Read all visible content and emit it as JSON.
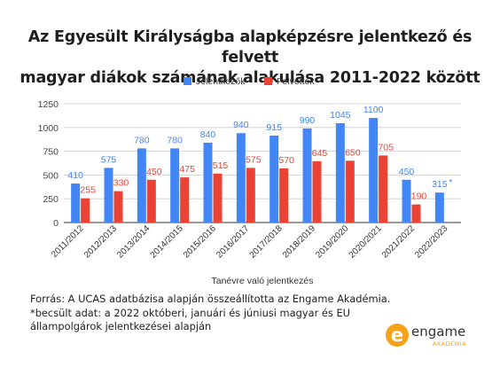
{
  "header": {
    "title_line1": "Az Egyesült Királyságba alapképzésre jelentkező és felvett",
    "title_line2": "magyar diákok számának alakulása 2011-2022 között"
  },
  "chart_data": {
    "type": "bar",
    "categories": [
      "2011/2012",
      "2012/2013",
      "2013/2014",
      "2014/2015",
      "2015/2016",
      "2016/2017",
      "2017/2018",
      "2018/2019",
      "2019/2020",
      "2020/2021",
      "2021/2022",
      "2022/2023"
    ],
    "series": [
      {
        "name": "Jelentkezők",
        "color": "#4285f4",
        "values": [
          410,
          575,
          780,
          780,
          840,
          940,
          915,
          990,
          1045,
          1100,
          450,
          315
        ],
        "labels": [
          "410",
          "575",
          "780",
          "780",
          "840",
          "940",
          "915",
          "990",
          "1045",
          "1100",
          "450",
          "315"
        ]
      },
      {
        "name": "Felvettek",
        "color": "#ea4335",
        "values": [
          255,
          330,
          450,
          475,
          515,
          575,
          570,
          645,
          650,
          705,
          190,
          null
        ],
        "labels": [
          "255",
          "330",
          "450",
          "475",
          "515",
          "575",
          "570",
          "645",
          "650",
          "705",
          "190",
          ""
        ]
      }
    ],
    "annotation": "*",
    "xlabel": "Tanévre való jelentkezés",
    "ylabel": "",
    "ylim": [
      0,
      1250
    ],
    "yticks": [
      0,
      250,
      500,
      750,
      1000,
      1250
    ],
    "grid": true,
    "legend": "top"
  },
  "footer": {
    "line1": "Forrás: A UCAS adatbázisa alapján összeállította az Engame Akadémia.",
    "line2": "*becsült adat: a 2022 októberi, januári és júniusi magyar és EU állampolgárok jelentkezései alapján"
  },
  "logo": {
    "letter": "e",
    "name": "engame",
    "sub": "AKADÉMIA",
    "color": "#f5a21b"
  }
}
